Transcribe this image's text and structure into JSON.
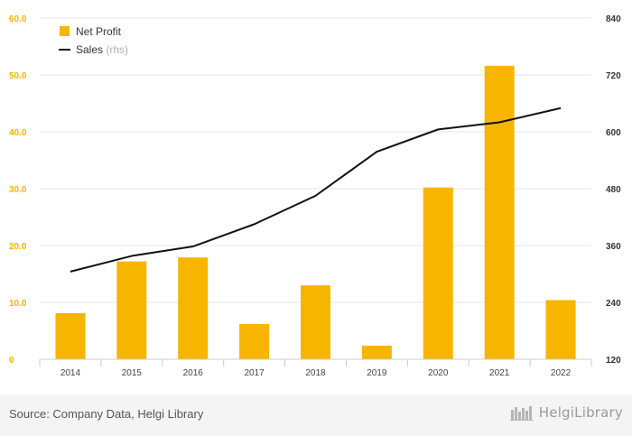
{
  "chart_data": {
    "type": "bar",
    "categories": [
      "2014",
      "2015",
      "2016",
      "2017",
      "2018",
      "2019",
      "2020",
      "2021",
      "2022"
    ],
    "series": [
      {
        "name": "Net Profit",
        "type": "bar",
        "axis": "left",
        "color": "#f7b500",
        "values": [
          8.1,
          17.2,
          17.9,
          6.2,
          13.0,
          2.4,
          30.2,
          51.6,
          10.4
        ]
      },
      {
        "name": "Sales",
        "type": "line",
        "axis": "right",
        "color": "#111111",
        "values": [
          305,
          338,
          358,
          405,
          465,
          558,
          605,
          620,
          650
        ]
      }
    ],
    "legend_suffix": "(rhs)",
    "y_left": {
      "min": 0,
      "max": 60,
      "ticks": [
        "0",
        "10.0",
        "20.0",
        "30.0",
        "40.0",
        "50.0",
        "60.0"
      ],
      "color": "#f7b500"
    },
    "y_right": {
      "min": 120,
      "max": 840,
      "ticks": [
        "120",
        "240",
        "360",
        "480",
        "600",
        "720",
        "840"
      ]
    },
    "grid": true,
    "legend_position": "top-left"
  },
  "footer": {
    "source": "Source: Company Data, Helgi Library",
    "brand": "HelgiLibrary",
    "brand_icon": "library-books-icon"
  }
}
